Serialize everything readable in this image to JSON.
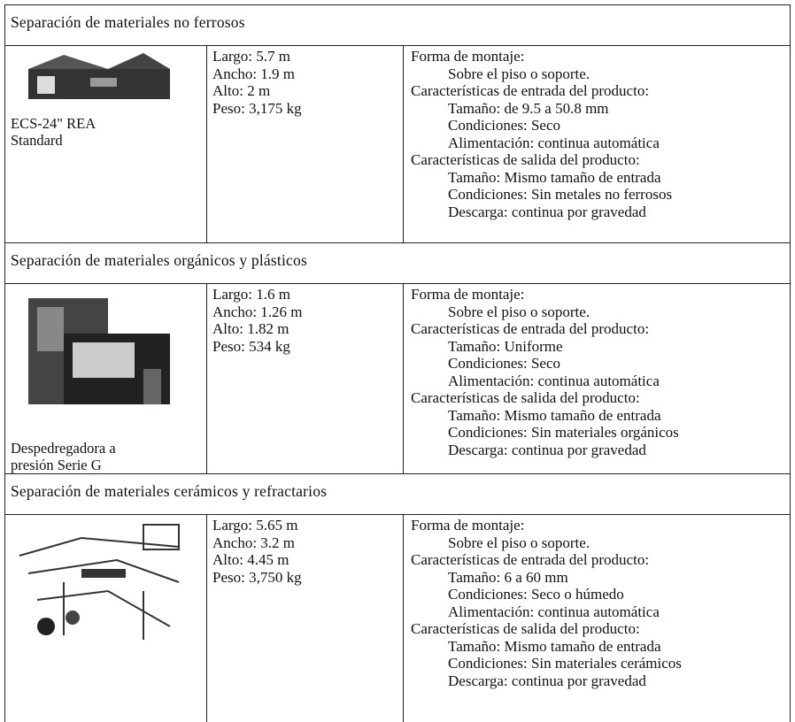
{
  "sections": [
    {
      "heading": "Separación de materiales no ferrosos",
      "caption": [
        "ECS-24\" REA",
        "Standard"
      ],
      "dimensions": [
        "Largo: 5.7 m",
        "Ancho: 1.9 m",
        "Alto: 2 m",
        "Peso: 3,175 kg"
      ],
      "specs": [
        {
          "label": "Forma de montaje:",
          "items": [
            "Sobre el piso o soporte."
          ]
        },
        {
          "label": "Características de entrada del producto:",
          "items": [
            "Tamaño: de 9.5 a 50.8 mm",
            "Condiciones: Seco",
            "Alimentación: continua automática"
          ]
        },
        {
          "label": "Características de salida del producto:",
          "items": [
            "Tamaño: Mismo tamaño de entrada",
            "Condiciones: Sin metales no ferrosos",
            "Descarga: continua por gravedad"
          ]
        }
      ]
    },
    {
      "heading": "Separación de materiales orgánicos y plásticos",
      "caption": [
        "Despedregadora a",
        "presión Serie G"
      ],
      "dimensions": [
        "Largo: 1.6 m",
        "Ancho: 1.26 m",
        "Alto: 1.82 m",
        "Peso: 534 kg"
      ],
      "specs": [
        {
          "label": "Forma de montaje:",
          "items": [
            "Sobre el piso o soporte."
          ]
        },
        {
          "label": "Características de entrada del producto:",
          "items": [
            "Tamaño: Uniforme",
            "Condiciones: Seco",
            "Alimentación: continua automática"
          ]
        },
        {
          "label": "Características de salida del producto:",
          "items": [
            "Tamaño: Mismo tamaño de entrada",
            "Condiciones: Sin materiales orgánicos",
            "Descarga: continua por gravedad"
          ]
        }
      ]
    },
    {
      "heading": "Separación de materiales cerámicos y refractarios",
      "caption": [],
      "dimensions": [
        "Largo: 5.65 m",
        "Ancho: 3.2 m",
        "Alto: 4.45 m",
        "Peso: 3,750 kg"
      ],
      "specs": [
        {
          "label": "Forma de montaje:",
          "items": [
            "Sobre el piso o soporte."
          ]
        },
        {
          "label": "Características de entrada del producto:",
          "items": [
            "Tamaño: 6 a 60 mm",
            "Condiciones: Seco o húmedo",
            "Alimentación: continua automática"
          ]
        },
        {
          "label": "Características de salida del producto:",
          "items": [
            "Tamaño: Mismo tamaño de entrada",
            "Condiciones: Sin materiales cerámicos",
            "Descarga: continua por gravedad"
          ]
        }
      ]
    }
  ]
}
